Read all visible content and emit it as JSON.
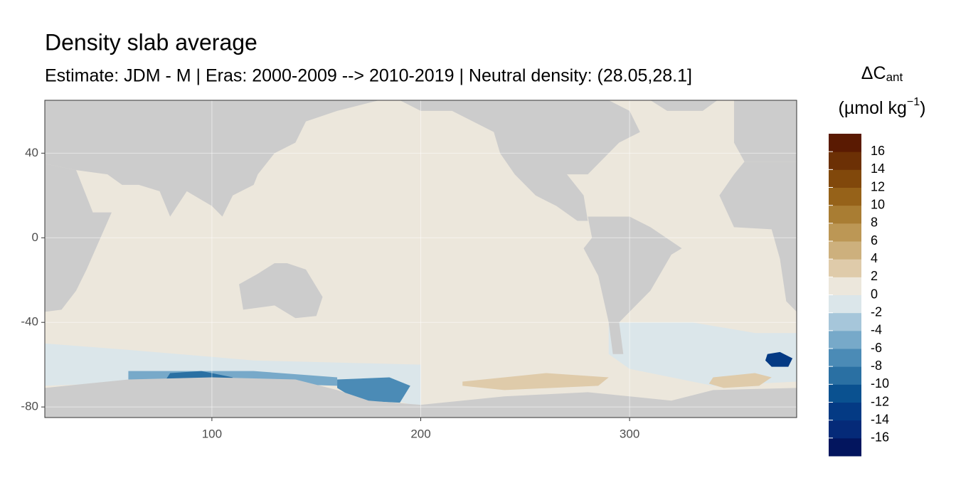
{
  "chart_data": {
    "type": "map",
    "title": "Density slab average",
    "subtitle": "Estimate: JDM - M | Eras: 2000-2009 --> 2010-2019 | Neutral density: (28.05,28.1]",
    "xlim": [
      20,
      380
    ],
    "ylim": [
      -85,
      65
    ],
    "xticks": [
      100,
      200,
      300
    ],
    "yticks": [
      40,
      0,
      -40,
      -80
    ],
    "grid": true,
    "land_color": "#cccccc",
    "legend": {
      "title_main": "ΔC",
      "title_sub": "ant",
      "unit": "(µmol kg",
      "unit_sup": "−1",
      "unit_close": ")",
      "lim": [
        -18,
        18
      ],
      "breaks": [
        -16,
        -14,
        -12,
        -10,
        -8,
        -6,
        -4,
        -2,
        0,
        2,
        4,
        6,
        8,
        10,
        12,
        14,
        16
      ],
      "colors": [
        "#03155e",
        "#052a78",
        "#043a84",
        "#0a5190",
        "#2a70a3",
        "#4b8bb6",
        "#77a9c9",
        "#a6c6da",
        "#dbe6ea",
        "#ece7dc",
        "#dfcbaa",
        "#cdb07d",
        "#bc9755",
        "#a97d33",
        "#966219",
        "#81480b",
        "#6c3005",
        "#5a1a02"
      ]
    },
    "regions": [
      {
        "value": 1,
        "lon": [
          20,
          380,
          380,
          20
        ],
        "lat": [
          65,
          65,
          -85,
          -85
        ]
      },
      {
        "value": -1,
        "lon": [
          20,
          60,
          120,
          200,
          200,
          160,
          100,
          20
        ],
        "lat": [
          -50,
          -53,
          -58,
          -60,
          -80,
          -70,
          -67,
          -70
        ]
      },
      {
        "value": -5,
        "lon": [
          60,
          120,
          160,
          160,
          100,
          60
        ],
        "lat": [
          -63,
          -63,
          -66,
          -70,
          -68,
          -68
        ]
      },
      {
        "value": -9,
        "lon": [
          80,
          95,
          110,
          108,
          90,
          78
        ],
        "lat": [
          -64,
          -63,
          -66,
          -69,
          -69,
          -67
        ]
      },
      {
        "value": -7,
        "lon": [
          160,
          185,
          195,
          190,
          170,
          160
        ],
        "lat": [
          -67,
          -66,
          -70,
          -78,
          -77,
          -71
        ]
      },
      {
        "value": -1,
        "lon": [
          290,
          330,
          360,
          380,
          380,
          340,
          300,
          290
        ],
        "lat": [
          -40,
          -40,
          -45,
          -45,
          -68,
          -70,
          -62,
          -55
        ]
      },
      {
        "value": -13,
        "lon": [
          366,
          372,
          378,
          376,
          368,
          365
        ],
        "lat": [
          -55,
          -54,
          -57,
          -61,
          -61,
          -58
        ]
      },
      {
        "value": 3,
        "lon": [
          220,
          260,
          290,
          285,
          240,
          220
        ],
        "lat": [
          -68,
          -64,
          -66,
          -70,
          -72,
          -70
        ]
      },
      {
        "value": 3,
        "lon": [
          340,
          360,
          368,
          362,
          345,
          338
        ],
        "lat": [
          -66,
          -64,
          -66,
          -70,
          -71,
          -69
        ]
      }
    ]
  }
}
